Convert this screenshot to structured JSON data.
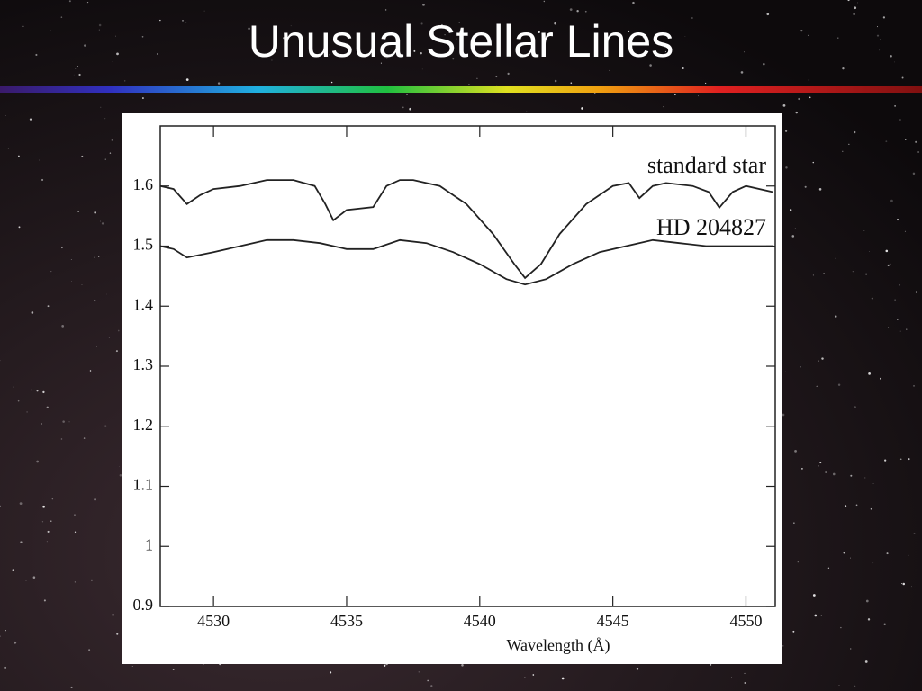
{
  "chart_data": {
    "type": "line",
    "title": "Unusual Stellar Lines",
    "xlabel": "Wavelength (Å)",
    "xlim": [
      4528,
      4551.1
    ],
    "ylim": [
      0.9,
      1.7
    ],
    "xticks": [
      4530,
      4535,
      4540,
      4545,
      4550
    ],
    "yticks": [
      0.9,
      1,
      1.1,
      1.2,
      1.3,
      1.4,
      1.5,
      1.6
    ],
    "series": [
      {
        "name": "standard star",
        "color": "#222222",
        "x": [
          4528,
          4528.5,
          4529,
          4529.5,
          4530,
          4531,
          4532,
          4533,
          4533.8,
          4534.2,
          4534.5,
          4535,
          4536,
          4536.5,
          4537,
          4537.5,
          4538.5,
          4539.5,
          4540.5,
          4541.3,
          4541.7,
          4542.3,
          4543,
          4544,
          4545,
          4545.6,
          4546,
          4546.5,
          4547,
          4548,
          4548.6,
          4549,
          4549.5,
          4550,
          4551
        ],
        "values": [
          1.6,
          1.595,
          1.57,
          1.585,
          1.595,
          1.6,
          1.61,
          1.61,
          1.6,
          1.57,
          1.543,
          1.56,
          1.565,
          1.6,
          1.61,
          1.61,
          1.6,
          1.57,
          1.52,
          1.47,
          1.447,
          1.47,
          1.52,
          1.57,
          1.6,
          1.605,
          1.58,
          1.6,
          1.605,
          1.6,
          1.59,
          1.564,
          1.59,
          1.6,
          1.59
        ]
      },
      {
        "name": "HD 204827",
        "color": "#222222",
        "x": [
          4528,
          4528.5,
          4529,
          4530,
          4531,
          4532,
          4533,
          4534,
          4535,
          4536,
          4537,
          4538,
          4539,
          4540,
          4541,
          4541.7,
          4542.5,
          4543.5,
          4544.5,
          4545.5,
          4546.5,
          4547.5,
          4548.5,
          4549.5,
          4551
        ],
        "values": [
          1.5,
          1.495,
          1.481,
          1.49,
          1.5,
          1.51,
          1.51,
          1.505,
          1.495,
          1.495,
          1.51,
          1.505,
          1.49,
          1.47,
          1.445,
          1.436,
          1.445,
          1.47,
          1.49,
          1.5,
          1.51,
          1.505,
          1.5,
          1.5,
          1.5
        ]
      }
    ]
  }
}
